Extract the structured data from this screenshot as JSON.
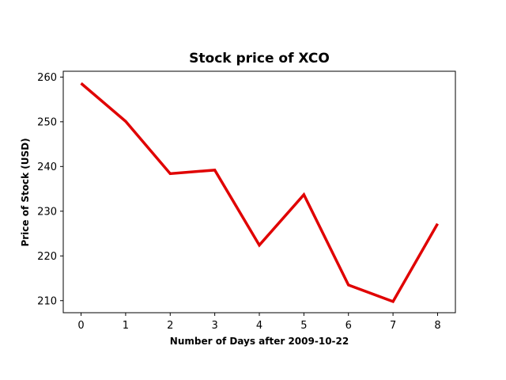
{
  "chart_data": {
    "type": "line",
    "title": "Stock price of XCO",
    "xlabel": "Number of Days after 2009-10-22",
    "ylabel": "Price of Stock (USD)",
    "x": [
      0,
      1,
      2,
      3,
      4,
      5,
      6,
      7,
      8
    ],
    "series": [
      {
        "values": [
          258.6,
          250.1,
          238.4,
          239.2,
          222.4,
          233.7,
          213.5,
          209.8,
          227.2
        ],
        "color": "#e00000"
      }
    ],
    "xlim": [
      -0.4,
      8.4
    ],
    "ylim": [
      207.3,
      261.3
    ],
    "xticks": [
      0,
      1,
      2,
      3,
      4,
      5,
      6,
      7,
      8
    ],
    "yticks": [
      210,
      220,
      230,
      240,
      250,
      260
    ],
    "grid": false
  }
}
